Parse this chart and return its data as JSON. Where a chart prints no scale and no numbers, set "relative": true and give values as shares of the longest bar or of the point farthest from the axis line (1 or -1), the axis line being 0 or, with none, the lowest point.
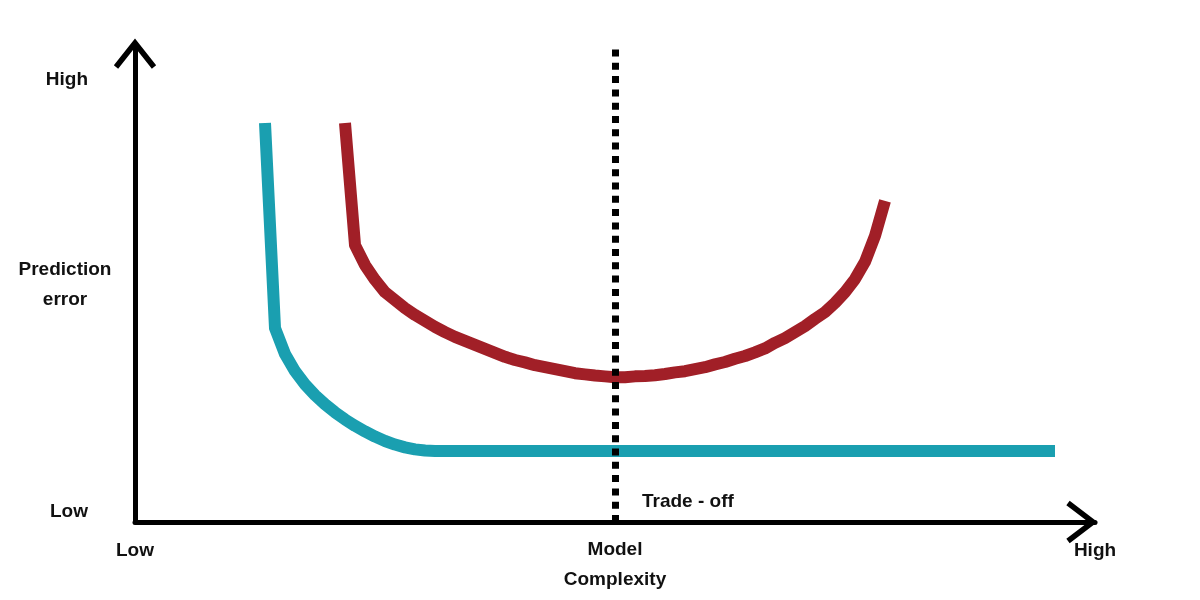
{
  "chart_data": {
    "type": "line",
    "relative": true,
    "xlabel": "Model Complexity",
    "ylabel": "Prediction error",
    "categories": [
      "Low",
      null,
      null,
      null,
      null,
      null,
      null,
      null,
      null,
      null,
      null,
      null,
      null,
      null,
      null,
      null,
      null,
      null,
      null,
      null,
      null,
      null,
      null,
      null,
      null,
      null,
      null,
      null,
      null,
      null,
      null,
      null,
      null,
      null,
      null,
      null,
      null,
      null,
      null,
      null,
      null,
      null,
      null,
      null,
      null,
      null,
      null,
      null,
      null,
      null,
      null,
      null,
      null,
      null,
      null,
      null,
      null,
      null,
      null,
      null,
      null,
      null,
      null,
      null,
      null,
      null,
      null,
      null,
      null,
      null,
      null,
      null,
      null,
      null,
      null,
      null,
      null,
      null,
      null,
      null,
      null,
      null,
      null,
      null,
      null,
      null,
      null,
      null,
      null,
      null,
      null,
      null,
      null,
      null,
      null,
      null,
      "High"
    ],
    "annotations": [
      "High",
      "Low",
      {
        "text": "Trade - off"
      }
    ],
    "grid": false,
    "marker": "none",
    "series": [
      {
        "color": "#1a9fb0",
        "values": [
          null,
          null,
          null,
          null,
          null,
          null,
          null,
          null,
          null,
          null,
          null,
          null,
          null,
          1.0,
          0.486,
          0.421,
          0.378,
          0.345,
          0.318,
          0.295,
          0.275,
          0.257,
          0.241,
          0.227,
          0.214,
          0.203,
          0.194,
          0.187,
          0.182,
          0.179,
          0.178,
          0.178,
          0.178,
          0.178,
          0.178,
          0.178,
          0.178,
          0.178,
          0.178,
          0.178,
          0.178,
          0.178,
          0.178,
          0.178,
          0.178,
          0.178,
          0.178,
          0.178,
          0.178,
          0.178,
          0.178,
          0.178,
          0.178,
          0.178,
          0.178,
          0.178,
          0.178,
          0.178,
          0.178,
          0.178,
          0.178,
          0.178,
          0.178,
          0.178,
          0.178,
          0.178,
          0.178,
          0.178,
          0.178,
          0.178,
          0.178,
          0.178,
          0.178,
          0.178,
          0.178,
          0.178,
          0.178,
          0.178,
          0.178,
          0.178,
          0.178,
          0.178,
          0.178,
          0.178,
          0.178,
          0.178,
          0.178,
          0.178,
          0.178,
          0.178,
          0.178,
          0.178,
          0.178,
          null,
          null,
          null,
          null
        ]
      },
      {
        "color": "#a11f27",
        "values": [
          null,
          null,
          null,
          null,
          null,
          null,
          null,
          null,
          null,
          null,
          null,
          null,
          null,
          null,
          null,
          null,
          null,
          null,
          null,
          null,
          null,
          1.0,
          0.694,
          0.644,
          0.607,
          0.576,
          0.556,
          0.536,
          0.519,
          0.504,
          0.489,
          0.476,
          0.464,
          0.454,
          0.444,
          0.434,
          0.424,
          0.414,
          0.406,
          0.4,
          0.393,
          0.388,
          0.383,
          0.378,
          0.373,
          0.37,
          0.367,
          0.365,
          0.363,
          0.363,
          0.365,
          0.366,
          0.368,
          0.371,
          0.375,
          0.378,
          0.383,
          0.388,
          0.395,
          0.401,
          0.409,
          0.416,
          0.425,
          0.435,
          0.449,
          0.461,
          0.476,
          0.491,
          0.509,
          0.526,
          0.549,
          0.576,
          0.609,
          0.652,
          0.717,
          0.805,
          null,
          null,
          null,
          null,
          null,
          null,
          null,
          null,
          null,
          null,
          null,
          null,
          null,
          null,
          null,
          null,
          null,
          null,
          null,
          null,
          null
        ]
      }
    ]
  }
}
